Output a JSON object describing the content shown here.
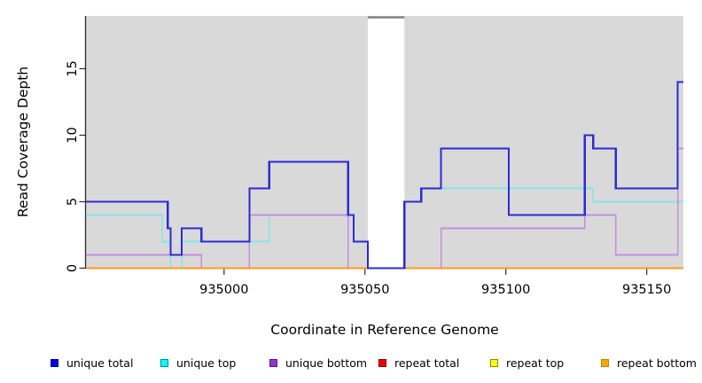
{
  "figure": {
    "xlabel": "Coordinate in Reference Genome",
    "ylabel": "Read Coverage Depth"
  },
  "legend": {
    "items": [
      {
        "label": "unique total",
        "fill": "#0000ee",
        "stroke": "#00008b"
      },
      {
        "label": "unique top",
        "fill": "#00ffff",
        "stroke": "#008b8b"
      },
      {
        "label": "unique bottom",
        "fill": "#9932cc",
        "stroke": "#551a8b"
      },
      {
        "label": "repeat total",
        "fill": "#ee0000",
        "stroke": "#8b0000"
      },
      {
        "label": "repeat top",
        "fill": "#ffff00",
        "stroke": "#8b8b00"
      },
      {
        "label": "repeat bottom",
        "fill": "#ffa500",
        "stroke": "#b8860b"
      }
    ]
  },
  "chart_data": {
    "type": "line",
    "subtype": "step-after",
    "title": "",
    "xlabel": "Coordinate in Reference Genome",
    "ylabel": "Read Coverage Depth",
    "xlim": [
      934951,
      935163
    ],
    "ylim": [
      0,
      18.97
    ],
    "x_ticks": [
      935000,
      935050,
      935100,
      935150
    ],
    "y_ticks": [
      0,
      5,
      10,
      15
    ],
    "grid": false,
    "legend_position": "bottom",
    "plot_bg": "#d9d9d9",
    "axis_color": "#2b2b2b",
    "masked_region": {
      "x0": 935051,
      "x1": 935064,
      "fill": "#ffffff",
      "cap_color": "#808080"
    },
    "paint_order": [
      3,
      4,
      1,
      2,
      5,
      0
    ],
    "series": [
      {
        "name": "unique total",
        "color": "#2b2bd5",
        "width": 2.2,
        "steps": [
          [
            934951,
            5
          ],
          [
            934980,
            3
          ],
          [
            934981,
            1
          ],
          [
            934985,
            3
          ],
          [
            934992,
            2
          ],
          [
            935009,
            6
          ],
          [
            935016,
            8
          ],
          [
            935044,
            4
          ],
          [
            935046,
            2
          ],
          [
            935051,
            0
          ],
          [
            935064,
            5
          ],
          [
            935070,
            6
          ],
          [
            935077,
            9
          ],
          [
            935101,
            4
          ],
          [
            935128,
            10
          ],
          [
            935131,
            9
          ],
          [
            935139,
            6
          ],
          [
            935161,
            14
          ]
        ]
      },
      {
        "name": "unique top",
        "color": "#85e4e9",
        "width": 1.6,
        "steps": [
          [
            934951,
            4
          ],
          [
            934978,
            2
          ],
          [
            934981,
            0
          ],
          [
            934985,
            2
          ],
          [
            935016,
            4
          ],
          [
            935046,
            2
          ],
          [
            935051,
            0
          ],
          [
            935064,
            5
          ],
          [
            935070,
            6
          ],
          [
            935131,
            5
          ]
        ]
      },
      {
        "name": "unique bottom",
        "color": "#c18fe0",
        "width": 1.6,
        "steps": [
          [
            934951,
            1
          ],
          [
            934992,
            0
          ],
          [
            935009,
            4
          ],
          [
            935044,
            0
          ],
          [
            935077,
            3
          ],
          [
            935128,
            4
          ],
          [
            935139,
            1
          ],
          [
            935161,
            9
          ]
        ]
      },
      {
        "name": "repeat total",
        "color": "#dd0000",
        "width": 1.6,
        "steps": [
          [
            934951,
            0
          ]
        ]
      },
      {
        "name": "repeat top",
        "color": "#ffff00",
        "width": 1.6,
        "steps": [
          [
            934951,
            0
          ]
        ]
      },
      {
        "name": "repeat bottom",
        "color": "#ff9a1e",
        "width": 2.0,
        "steps": [
          [
            934951,
            0
          ]
        ]
      }
    ]
  }
}
